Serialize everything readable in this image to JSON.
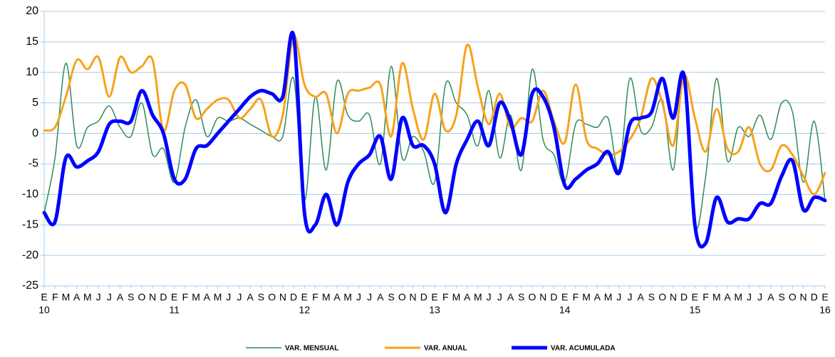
{
  "chart_data": {
    "type": "line",
    "categories": [
      "E",
      "F",
      "M",
      "A",
      "M",
      "J",
      "J",
      "A",
      "S",
      "O",
      "N",
      "D",
      "E",
      "F",
      "M",
      "A",
      "M",
      "J",
      "J",
      "A",
      "S",
      "O",
      "N",
      "D",
      "E",
      "F",
      "M",
      "A",
      "M",
      "J",
      "J",
      "A",
      "S",
      "O",
      "N",
      "D",
      "E",
      "F",
      "M",
      "A",
      "M",
      "J",
      "J",
      "A",
      "S",
      "O",
      "N",
      "D",
      "E",
      "F",
      "M",
      "A",
      "M",
      "J",
      "J",
      "A",
      "S",
      "O",
      "N",
      "D",
      "E",
      "F",
      "M",
      "A",
      "M",
      "J",
      "J",
      "A",
      "S",
      "O",
      "N",
      "D",
      "E"
    ],
    "years": [
      "10",
      "11",
      "12",
      "13",
      "14",
      "15",
      "16"
    ],
    "ylim": [
      -25,
      20
    ],
    "yticks": [
      -25,
      -20,
      -15,
      -10,
      -5,
      0,
      5,
      10,
      15,
      20
    ],
    "grid": true,
    "legend": "bottom",
    "series": [
      {
        "name": "VAR. MENSUAL",
        "color": "#2e8b57",
        "width": 1.5,
        "values": [
          -13,
          -4,
          11.5,
          -2,
          1,
          2,
          4.5,
          1,
          -0.5,
          5,
          -3.5,
          -2.5,
          -8,
          1,
          5.5,
          -0.5,
          2.5,
          2,
          2.5,
          1.5,
          0.5,
          -0.5,
          -0.5,
          9,
          -11,
          6,
          -6,
          8.5,
          3,
          2,
          3,
          -5,
          11,
          -4,
          -0.5,
          -3,
          -8,
          8,
          5,
          3,
          -2,
          7,
          -4,
          3,
          -6,
          10.5,
          -1,
          -3.5,
          -8,
          1.5,
          1.5,
          1,
          2.5,
          -6,
          9,
          0.5,
          1,
          5.5,
          -6,
          9.5,
          -15,
          -7,
          9,
          -4.5,
          1,
          -0.5,
          3,
          -1,
          5,
          3.5,
          -8,
          2,
          -11
        ]
      },
      {
        "name": "VAR. ANUAL",
        "color": "#f7a21b",
        "width": 3,
        "values": [
          0.5,
          1,
          6,
          12,
          10.5,
          12.5,
          6,
          12.5,
          10,
          11,
          12,
          0.5,
          7,
          8,
          2.5,
          4,
          5.5,
          5.5,
          2.5,
          4,
          5.5,
          -0.5,
          3,
          16,
          8,
          6,
          6.5,
          0,
          6.5,
          7,
          7.5,
          8,
          -0.5,
          11.5,
          4,
          -1,
          6.5,
          0.5,
          3,
          14.5,
          7.5,
          1.5,
          6.5,
          1,
          2.5,
          2,
          7,
          2,
          -1.5,
          8,
          -1,
          -2.5,
          -3.5,
          -3,
          -1,
          2.5,
          9,
          5,
          -2,
          9.5,
          2.5,
          -3,
          4,
          -2.5,
          -3,
          1,
          -5,
          -6,
          -2,
          -3.5,
          -7,
          -10,
          -6.5
        ]
      },
      {
        "name": "VAR. ACUMULADA",
        "color": "#0000ff",
        "width": 5,
        "values": [
          -13,
          -14.5,
          -4,
          -5.5,
          -4.5,
          -3,
          1.5,
          2,
          2,
          7,
          3,
          0,
          -7.5,
          -7.5,
          -2.5,
          -2,
          0,
          2,
          4,
          6,
          7,
          6.5,
          6,
          16,
          -13,
          -15,
          -10,
          -15,
          -8,
          -5,
          -3.5,
          -0.5,
          -7.5,
          2.5,
          -2,
          -2,
          -5,
          -13,
          -5,
          -1,
          2,
          -2,
          5,
          2,
          -3.5,
          6.5,
          6,
          1,
          -8.5,
          -7.5,
          -6,
          -5,
          -3,
          -6.5,
          1.5,
          2.5,
          3.5,
          9,
          2.5,
          9.5,
          -15,
          -18,
          -10.5,
          -14.5,
          -14,
          -14,
          -11.5,
          -11.5,
          -7,
          -4.5,
          -12.5,
          -10.5,
          -11
        ]
      }
    ]
  }
}
